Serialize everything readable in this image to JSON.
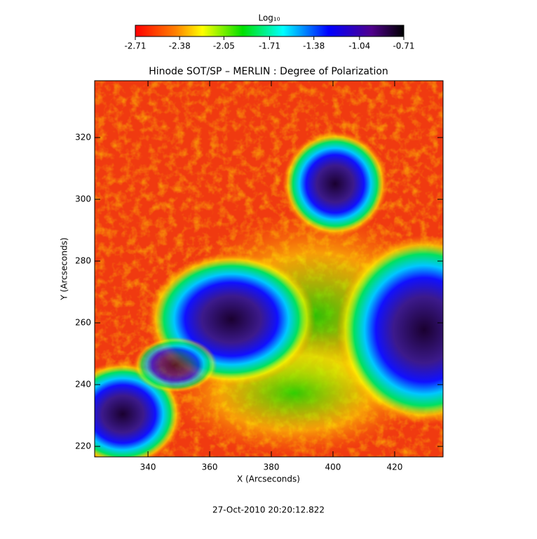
{
  "chart_data": {
    "type": "image",
    "title": "Hinode SOT/SP – MERLIN : Degree of Polarization",
    "x_label": "X (Arcseconds)",
    "y_label": "Y (Arcseconds)",
    "xlim": [
      322.7,
      435.7
    ],
    "ylim": [
      216.6,
      338.4
    ],
    "xticks": [
      340,
      360,
      380,
      400,
      420
    ],
    "yticks": [
      220,
      240,
      260,
      280,
      300,
      320
    ],
    "colorbar_label": "Log₁₀",
    "clim": [
      -2.71,
      -0.71
    ],
    "cticks": [
      -2.71,
      -2.38,
      -2.05,
      -1.71,
      -1.38,
      -1.04,
      -0.71
    ],
    "footer": "27-Oct-2010 20:20:12.822"
  }
}
